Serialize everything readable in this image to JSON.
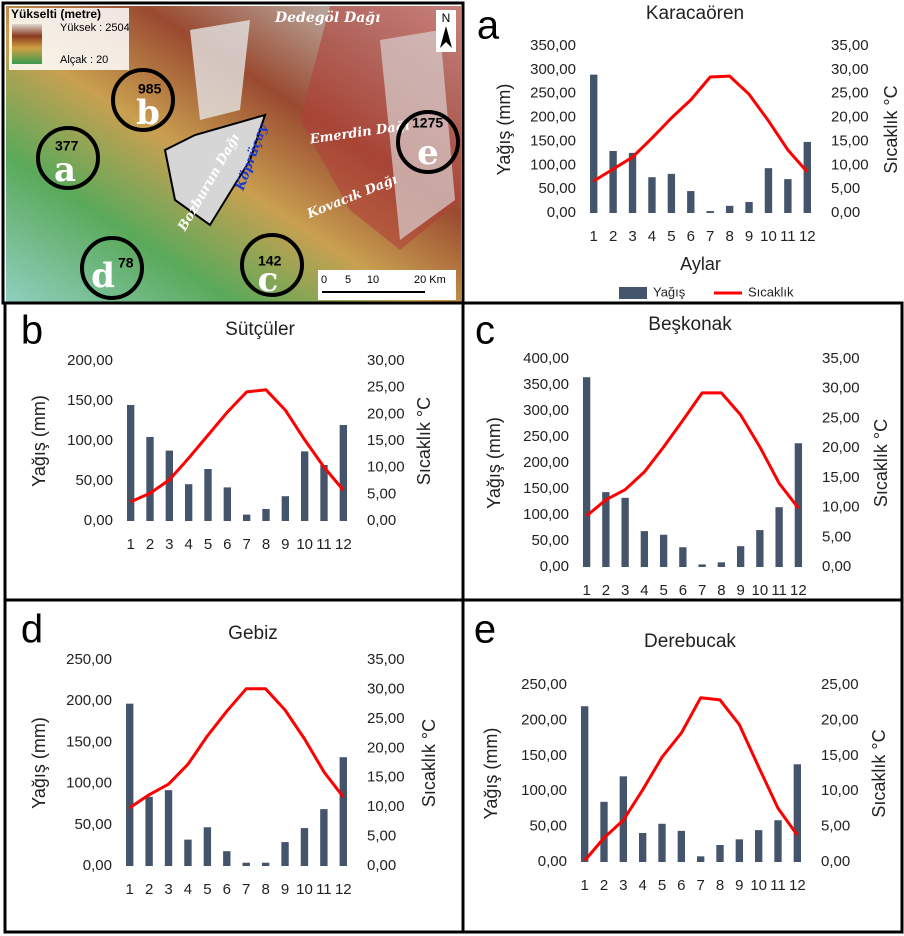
{
  "map": {
    "legend_title": "Yükselti (metre)",
    "legend_high": "Yüksek : 2504",
    "legend_low": "Alçak : 20",
    "places": [
      "Dedegöl Dağı",
      "Emerdin Dağı",
      "Kovacık Dağı",
      "Bozburun Dağı",
      "Köprüçay"
    ],
    "stations": [
      {
        "letter": "a",
        "elevation": "377"
      },
      {
        "letter": "b",
        "elevation": "985"
      },
      {
        "letter": "c",
        "elevation": "142"
      },
      {
        "letter": "d",
        "elevation": "78"
      },
      {
        "letter": "e",
        "elevation": "1275"
      }
    ],
    "north": "N",
    "scale": [
      "0",
      "5",
      "10",
      "20 Km"
    ]
  },
  "chart_data": [
    {
      "type": "combo",
      "panel_label": "a",
      "title": "Karacaören",
      "ylabel": "Yağış (mm)",
      "y2label": "Sıcaklık °C",
      "xlabel": "Aylar",
      "legend": true,
      "categories": [
        "1",
        "2",
        "3",
        "4",
        "5",
        "6",
        "7",
        "8",
        "9",
        "10",
        "11",
        "12"
      ],
      "series": [
        {
          "name": "Yağış",
          "type": "bar",
          "color": "#44546a",
          "values": [
            290,
            130,
            126,
            75,
            82,
            46,
            4,
            15,
            23,
            94,
            71,
            149
          ]
        },
        {
          "name": "Sıcaklık",
          "type": "line",
          "axis": "y2",
          "color": "#ff0000",
          "values": [
            6.7,
            9.2,
            11.7,
            15.7,
            19.9,
            23.7,
            28.5,
            28.7,
            24.9,
            19.3,
            13.2,
            8.6
          ]
        }
      ],
      "ylim": [
        0,
        350
      ],
      "yticks": [
        {
          "value": 0,
          "label": "0,00"
        },
        {
          "value": 50,
          "label": "50,00"
        },
        {
          "value": 100,
          "label": "100,00"
        },
        {
          "value": 150,
          "label": "150,00"
        },
        {
          "value": 200,
          "label": "200,00"
        },
        {
          "value": 250,
          "label": "250,00"
        },
        {
          "value": 300,
          "label": "300,00"
        },
        {
          "value": 350,
          "label": "350,00"
        }
      ],
      "y2lim": [
        0,
        35
      ],
      "y2ticks": [
        {
          "value": 0,
          "label": "0,00"
        },
        {
          "value": 5,
          "label": "5,00"
        },
        {
          "value": 10,
          "label": "10,00"
        },
        {
          "value": 15,
          "label": "15,00"
        },
        {
          "value": 20,
          "label": "20,00"
        },
        {
          "value": 25,
          "label": "25,00"
        },
        {
          "value": 30,
          "label": "30,00"
        },
        {
          "value": 35,
          "label": "35,00"
        }
      ]
    },
    {
      "type": "combo",
      "panel_label": "b",
      "title": "Sütçüler",
      "ylabel": "Yağış (mm)",
      "y2label": "Sıcaklık °C",
      "legend": false,
      "categories": [
        "1",
        "2",
        "3",
        "4",
        "5",
        "6",
        "7",
        "8",
        "9",
        "10",
        "11",
        "12"
      ],
      "series": [
        {
          "type": "bar",
          "color": "#44546a",
          "values": [
            145,
            105,
            88,
            46,
            65,
            42,
            8,
            15,
            31,
            87,
            70,
            120
          ]
        },
        {
          "type": "line",
          "axis": "y2",
          "color": "#ff0000",
          "values": [
            3.6,
            5.2,
            7.7,
            11.8,
            16.1,
            20.4,
            24.2,
            24.6,
            20.8,
            15.2,
            10.1,
            5.8
          ]
        }
      ],
      "ylim": [
        0,
        200
      ],
      "yticks": [
        {
          "value": 0,
          "label": "0,00"
        },
        {
          "value": 50,
          "label": "50,00"
        },
        {
          "value": 100,
          "label": "100,00"
        },
        {
          "value": 150,
          "label": "150,00"
        },
        {
          "value": 200,
          "label": "200,00"
        }
      ],
      "y2lim": [
        0,
        30
      ],
      "y2ticks": [
        {
          "value": 0,
          "label": "0,00"
        },
        {
          "value": 5,
          "label": "5,00"
        },
        {
          "value": 10,
          "label": "10,00"
        },
        {
          "value": 15,
          "label": "15,00"
        },
        {
          "value": 20,
          "label": "20,00"
        },
        {
          "value": 25,
          "label": "25,00"
        },
        {
          "value": 30,
          "label": "30,00"
        }
      ]
    },
    {
      "type": "combo",
      "panel_label": "c",
      "title": "Beşkonak",
      "ylabel": "Yağış (mm)",
      "y2label": "Sıcaklık °C",
      "legend": false,
      "categories": [
        "1",
        "2",
        "3",
        "4",
        "5",
        "6",
        "7",
        "8",
        "9",
        "10",
        "11",
        "12"
      ],
      "series": [
        {
          "type": "bar",
          "color": "#44546a",
          "values": [
            365,
            144,
            133,
            69,
            62,
            38,
            5,
            9,
            40,
            71,
            115,
            238
          ]
        },
        {
          "type": "line",
          "axis": "y2",
          "color": "#ff0000",
          "values": [
            8.6,
            11.3,
            13,
            16,
            20.2,
            24.7,
            29.3,
            29.3,
            25.6,
            20.2,
            14.1,
            9.9
          ]
        }
      ],
      "ylim": [
        0,
        400
      ],
      "yticks": [
        {
          "value": 0,
          "label": "0,00"
        },
        {
          "value": 50,
          "label": "50,00"
        },
        {
          "value": 100,
          "label": "100,00"
        },
        {
          "value": 150,
          "label": "150,00"
        },
        {
          "value": 200,
          "label": "200,00"
        },
        {
          "value": 250,
          "label": "250,00"
        },
        {
          "value": 300,
          "label": "300,00"
        },
        {
          "value": 350,
          "label": "350,00"
        },
        {
          "value": 400,
          "label": "400,00"
        }
      ],
      "y2lim": [
        0,
        35
      ],
      "y2ticks": [
        {
          "value": 0,
          "label": "0,00"
        },
        {
          "value": 5,
          "label": "5,00"
        },
        {
          "value": 10,
          "label": "10,00"
        },
        {
          "value": 15,
          "label": "15,00"
        },
        {
          "value": 20,
          "label": "20,00"
        },
        {
          "value": 25,
          "label": "25,00"
        },
        {
          "value": 30,
          "label": "30,00"
        },
        {
          "value": 35,
          "label": "35,00"
        }
      ]
    },
    {
      "type": "combo",
      "panel_label": "d",
      "title": "Gebiz",
      "ylabel": "Yağış (mm)",
      "y2label": "Sıcaklık °C",
      "legend": false,
      "categories": [
        "1",
        "2",
        "3",
        "4",
        "5",
        "6",
        "7",
        "8",
        "9",
        "10",
        "11",
        "12"
      ],
      "series": [
        {
          "type": "bar",
          "color": "#44546a",
          "values": [
            197,
            84,
            92,
            32,
            47,
            18,
            4,
            4,
            29,
            46,
            69,
            132
          ]
        },
        {
          "type": "line",
          "axis": "y2",
          "color": "#ff0000",
          "values": [
            9.9,
            12.1,
            13.9,
            17.3,
            22.1,
            26.3,
            30.1,
            30.1,
            26.5,
            21.6,
            16,
            11.7
          ]
        }
      ],
      "ylim": [
        0,
        250
      ],
      "yticks": [
        {
          "value": 0,
          "label": "0,00"
        },
        {
          "value": 50,
          "label": "50,00"
        },
        {
          "value": 100,
          "label": "100,00"
        },
        {
          "value": 150,
          "label": "150,00"
        },
        {
          "value": 200,
          "label": "200,00"
        },
        {
          "value": 250,
          "label": "250,00"
        }
      ],
      "y2lim": [
        0,
        35
      ],
      "y2ticks": [
        {
          "value": 0,
          "label": "0,00"
        },
        {
          "value": 5,
          "label": "5,00"
        },
        {
          "value": 10,
          "label": "10,00"
        },
        {
          "value": 15,
          "label": "15,00"
        },
        {
          "value": 20,
          "label": "20,00"
        },
        {
          "value": 25,
          "label": "25,00"
        },
        {
          "value": 30,
          "label": "30,00"
        },
        {
          "value": 35,
          "label": "35,00"
        }
      ]
    },
    {
      "type": "combo",
      "panel_label": "e",
      "title": "Derebucak",
      "ylabel": "Yağış (mm)",
      "y2label": "Sıcaklık °C",
      "legend": false,
      "categories": [
        "1",
        "2",
        "3",
        "4",
        "5",
        "6",
        "7",
        "8",
        "9",
        "10",
        "11",
        "12"
      ],
      "series": [
        {
          "type": "bar",
          "color": "#44546a",
          "values": [
            220,
            85,
            121,
            41,
            54,
            44,
            8,
            24,
            32,
            45,
            59,
            138
          ]
        },
        {
          "type": "line",
          "axis": "y2",
          "color": "#ff0000",
          "values": [
            0.2,
            3.4,
            5.9,
            10.2,
            14.8,
            18.2,
            23.2,
            22.9,
            19.4,
            13.4,
            7.6,
            3.8
          ]
        }
      ],
      "ylim": [
        0,
        250
      ],
      "yticks": [
        {
          "value": 0,
          "label": "0,00"
        },
        {
          "value": 50,
          "label": "50,00"
        },
        {
          "value": 100,
          "label": "100,00"
        },
        {
          "value": 150,
          "label": "150,00"
        },
        {
          "value": 200,
          "label": "200,00"
        },
        {
          "value": 250,
          "label": "250,00"
        }
      ],
      "y2lim": [
        0,
        25
      ],
      "y2ticks": [
        {
          "value": 0,
          "label": "0,00"
        },
        {
          "value": 5,
          "label": "5,00"
        },
        {
          "value": 10,
          "label": "10,00"
        },
        {
          "value": 15,
          "label": "15,00"
        },
        {
          "value": 20,
          "label": "20,00"
        },
        {
          "value": 25,
          "label": "25,00"
        }
      ]
    }
  ]
}
